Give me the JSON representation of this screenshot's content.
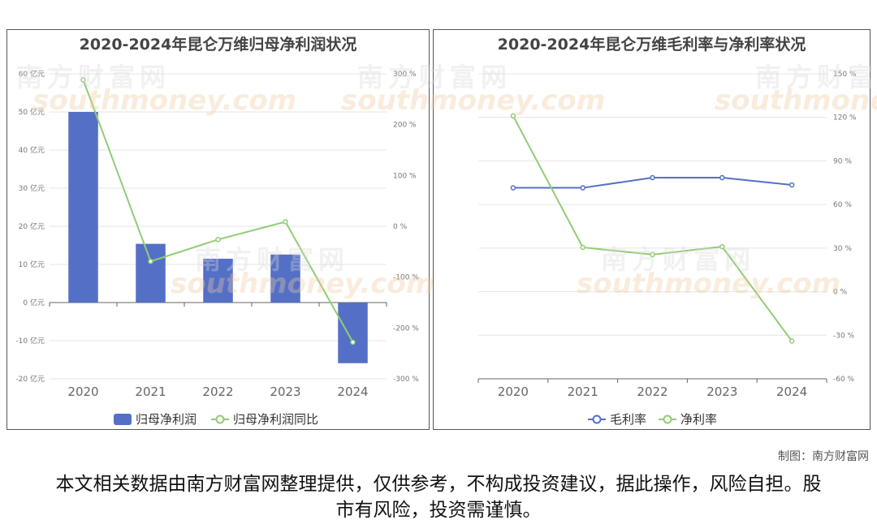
{
  "watermark": {
    "brand": "南方财富网",
    "domain": "southmoney.com"
  },
  "credit": "制图：南方财富网",
  "disclaimer": "本文相关数据由南方财富网整理提供，仅供参考，不构成投资建议，据此操作，风险自担。股市有风险，投资需谨慎。",
  "colors": {
    "bar": "#5470c6",
    "green": "#91cc75",
    "blue": "#5470c6",
    "grid": "#e6e6e6",
    "axis": "#666666"
  },
  "chart_data": [
    {
      "type": "bar",
      "title": "2020-2024年昆仑万维归母净利润状况",
      "categories": [
        "2020",
        "2021",
        "2022",
        "2023",
        "2024"
      ],
      "series": [
        {
          "name": "归母净利润",
          "type": "bar",
          "axis": "left",
          "values": [
            50.0,
            15.4,
            11.5,
            12.6,
            -15.9
          ]
        },
        {
          "name": "归母净利润同比",
          "type": "line",
          "axis": "right",
          "values": [
            288,
            -69,
            -26,
            9,
            -228
          ]
        }
      ],
      "y_left": {
        "min": -20,
        "max": 60,
        "step": 10,
        "unit": "亿元"
      },
      "y_right": {
        "min": -300,
        "max": 300,
        "step": 100,
        "unit": "%"
      },
      "grid": true,
      "legend": "bottom"
    },
    {
      "type": "line",
      "title": "2020-2024年昆仑万维毛利率与净利率状况",
      "categories": [
        "2020",
        "2021",
        "2022",
        "2023",
        "2024"
      ],
      "series": [
        {
          "name": "毛利率",
          "color": "#5470c6",
          "values": [
            71.5,
            71.5,
            78.5,
            78.5,
            73.5
          ]
        },
        {
          "name": "净利率",
          "color": "#91cc75",
          "values": [
            121,
            30.5,
            25.5,
            31,
            -34
          ]
        }
      ],
      "y_right": {
        "min": -60,
        "max": 150,
        "step": 30,
        "unit": "%"
      },
      "grid": true,
      "legend": "bottom"
    }
  ]
}
